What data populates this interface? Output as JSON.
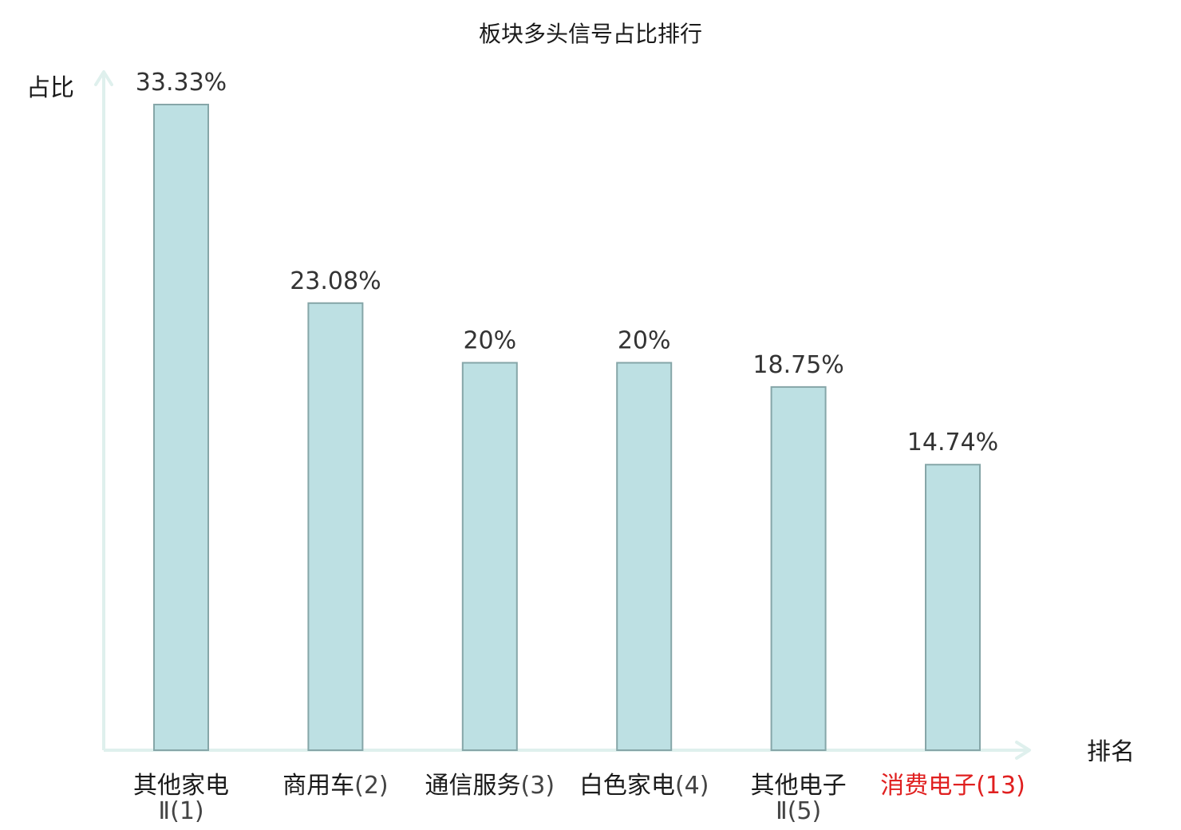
{
  "chart_data": {
    "type": "bar",
    "title": "板块多头信号占比排行",
    "ylabel": "占比",
    "xlabel": "排名",
    "ylim": [
      0,
      35
    ],
    "grid": false,
    "categories": [
      {
        "name": "其他家电",
        "rank": "Ⅱ(1)"
      },
      {
        "name": "商用车",
        "rank": "(2)"
      },
      {
        "name": "通信服务",
        "rank": "(3)"
      },
      {
        "name": "白色家电",
        "rank": "(4)"
      },
      {
        "name": "其他电子",
        "rank": "Ⅱ(5)"
      },
      {
        "name": "消费电子",
        "rank": "(13)"
      }
    ],
    "values": [
      33.33,
      23.08,
      20,
      20,
      18.75,
      14.74
    ],
    "value_labels": [
      "33.33%",
      "23.08%",
      "20%",
      "20%",
      "18.75%",
      "14.74%"
    ],
    "highlight_index": 5
  },
  "colors": {
    "bar_fill": "#bde0e3",
    "bar_stroke": "#86a6a8",
    "axis": "#dff0ed",
    "text": "#1a1a1a",
    "value_text": "#333333",
    "rank_text": "#444444",
    "highlight": "#e02020"
  }
}
